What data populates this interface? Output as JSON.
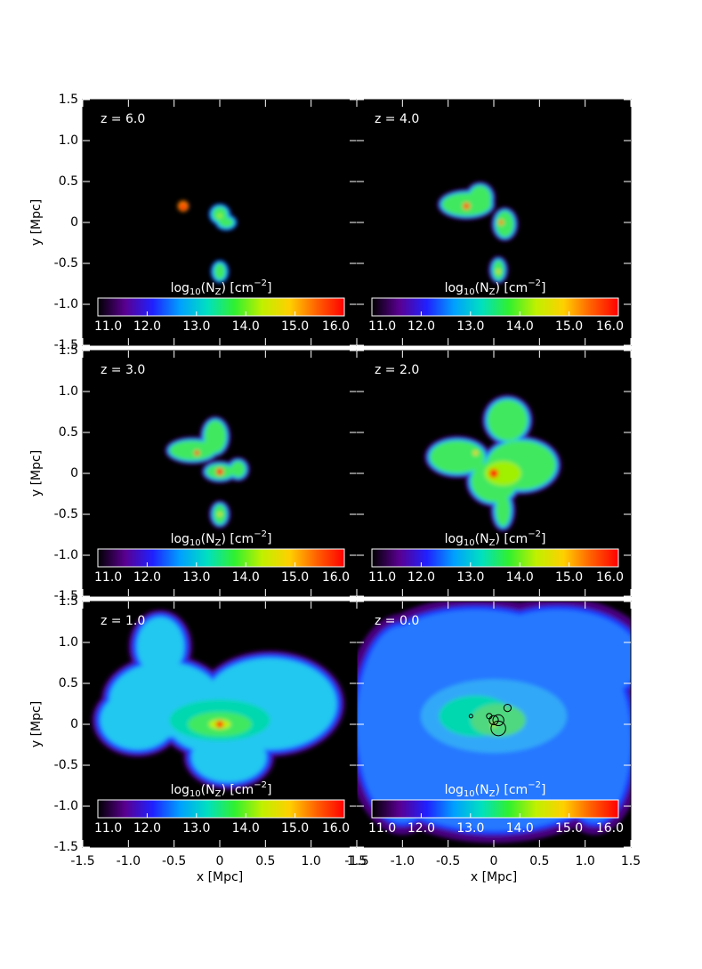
{
  "chart_data": {
    "type": "image",
    "xlabel": "x [Mpc]",
    "ylabel": "y [Mpc]",
    "xlim": [
      -1.5,
      1.5
    ],
    "ylim": [
      -1.5,
      1.5
    ],
    "xticks": [
      -1.5,
      {
        "value": -1,
        "label": "-1.0"
      },
      -0.5,
      0,
      0.5,
      {
        "value": 1,
        "label": "1.0"
      },
      1.5
    ],
    "yticks": [
      -1.5,
      {
        "value": -1,
        "label": "-1.0"
      },
      -0.5,
      0,
      0.5,
      {
        "value": 1,
        "label": "1.0"
      },
      1.5
    ],
    "colorbar": {
      "label": [
        "log",
        "10",
        "(N",
        "Z",
        ") [cm",
        "−2",
        "]"
      ],
      "lim": [
        11,
        16
      ],
      "ticks": [
        {
          "value": 11,
          "label": "11.0"
        },
        {
          "value": 12,
          "label": "12.0"
        },
        {
          "value": 13,
          "label": "13.0"
        },
        {
          "value": 14,
          "label": "14.0"
        },
        {
          "value": 15,
          "label": "15.0"
        },
        {
          "value": 16,
          "label": "16.0"
        }
      ],
      "colors": [
        "#000000",
        "#5a0090",
        "#2020ff",
        "#00a0ff",
        "#00e0c0",
        "#30f030",
        "#c0f000",
        "#ffd000",
        "#ff6000",
        "#ff0000"
      ]
    },
    "panels": [
      {
        "label": "z = 6.0"
      },
      {
        "label": "z = 4.0"
      },
      {
        "label": "z = 3.0"
      },
      {
        "label": "z = 2.0"
      },
      {
        "label": "z = 1.0"
      },
      {
        "label": "z = 0.0"
      }
    ]
  }
}
